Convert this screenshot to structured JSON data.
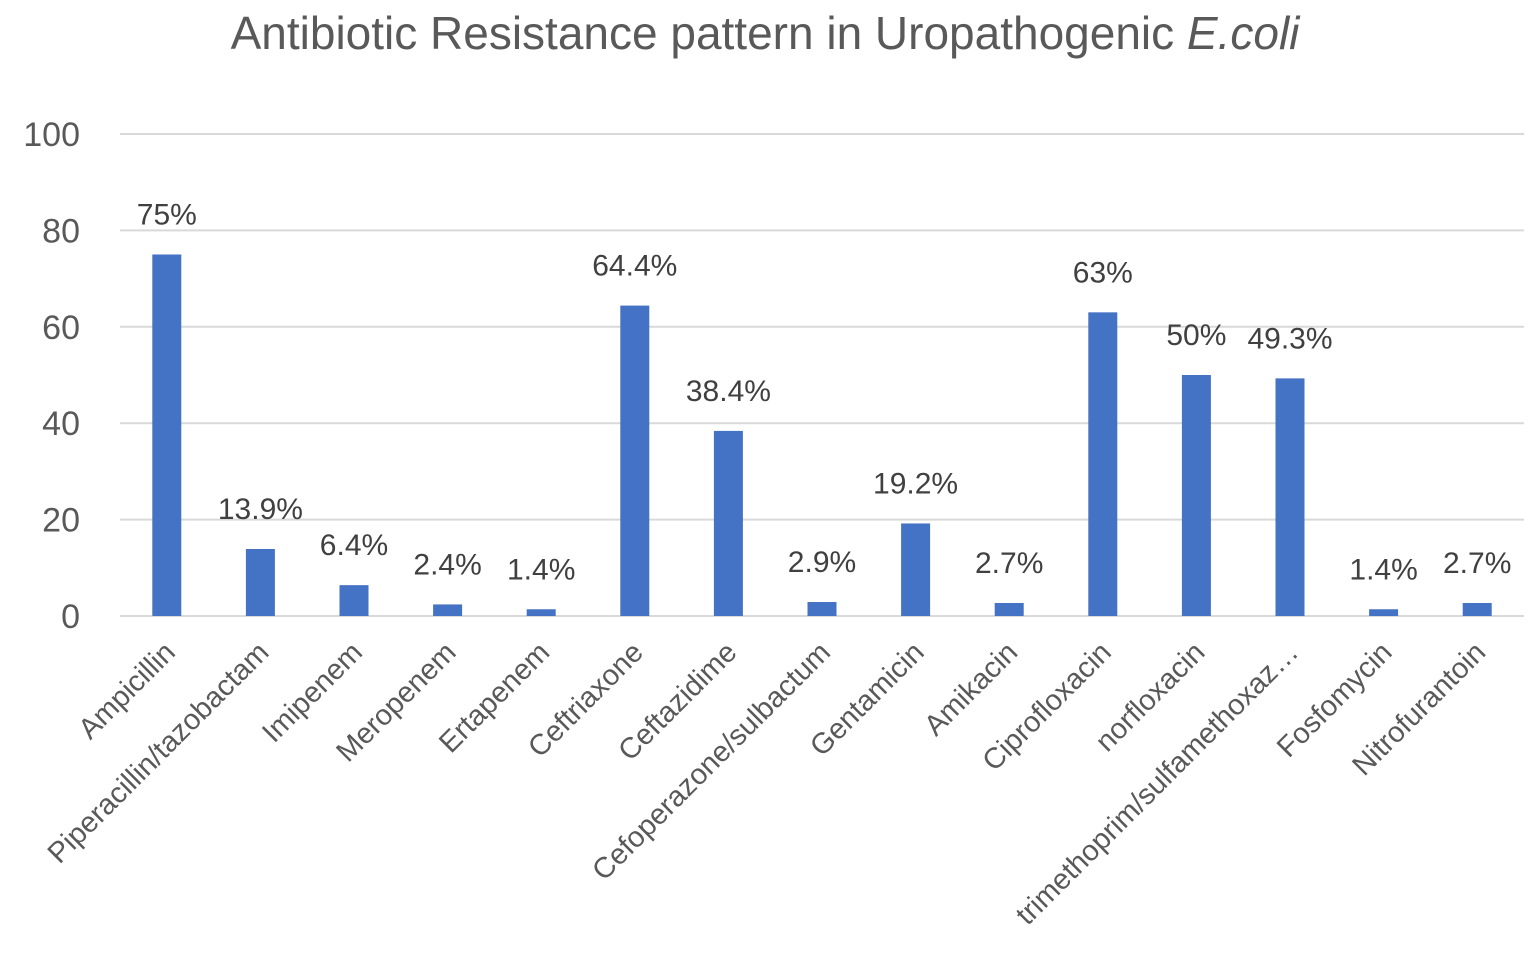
{
  "chart_data": {
    "type": "bar",
    "title": "Antibiotic Resistance pattern in Uropathogenic",
    "title_italic": "E.coli",
    "xlabel": "",
    "ylabel": "",
    "ylim": [
      0,
      100
    ],
    "yticks": [
      0,
      20,
      40,
      60,
      80,
      100
    ],
    "grid": true,
    "bar_color": "#4472C4",
    "categories": [
      "Ampicillin",
      "Piperacillin/tazobactam",
      "Imipenem",
      "Meropenem",
      "Ertapenem",
      "Ceftriaxone",
      "Ceftazidime",
      "Cefoperazone/sulbactum",
      "Gentamicin",
      "Amikacin",
      "Ciprofloxacin",
      "norfloxacin",
      "trimethoprim/sulfamethoxaz…",
      "Fosfomycin",
      "Nitrofurantoin"
    ],
    "values": [
      75,
      13.9,
      6.4,
      2.4,
      1.4,
      64.4,
      38.4,
      2.9,
      19.2,
      2.7,
      63,
      50,
      49.3,
      1.4,
      2.7
    ],
    "data_labels": [
      "75%",
      "13.9%",
      "6.4%",
      "2.4%",
      "1.4%",
      "64.4%",
      "38.4%",
      "2.9%",
      "19.2%",
      "2.7%",
      "63%",
      "50%",
      "49.3%",
      "1.4%",
      "2.7%"
    ]
  }
}
